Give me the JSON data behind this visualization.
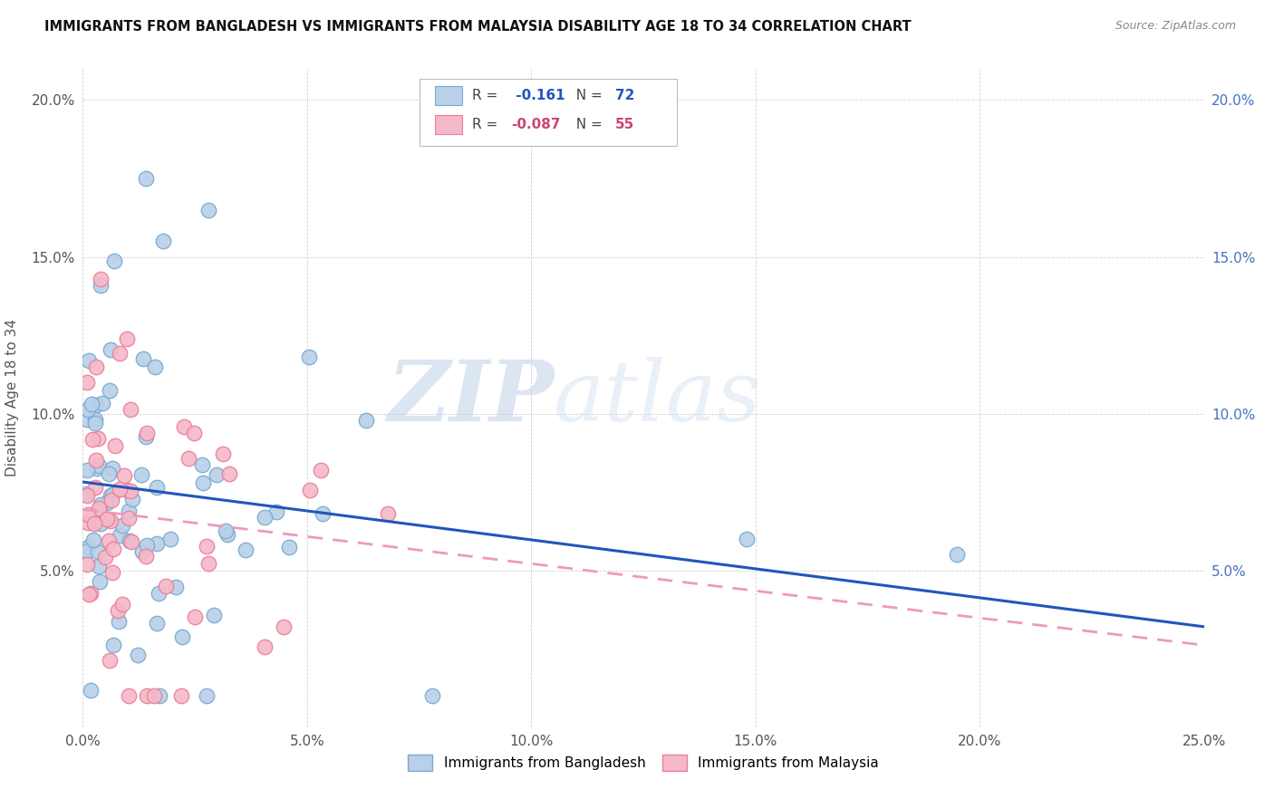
{
  "title": "IMMIGRANTS FROM BANGLADESH VS IMMIGRANTS FROM MALAYSIA DISABILITY AGE 18 TO 34 CORRELATION CHART",
  "source": "Source: ZipAtlas.com",
  "ylabel": "Disability Age 18 to 34",
  "xlim": [
    0.0,
    0.25
  ],
  "ylim": [
    0.0,
    0.21
  ],
  "bangladesh_color": "#b8d0e8",
  "malaysia_color": "#f5b8c8",
  "bangladesh_edge": "#7aaad0",
  "malaysia_edge": "#e8809a",
  "trend_bangladesh_color": "#2255bb",
  "trend_malaysia_color": "#ee99bb",
  "bangladesh_label": "Immigrants from Bangladesh",
  "malaysia_label": "Immigrants from Malaysia",
  "bangladesh_R": -0.161,
  "bangladesh_N": 72,
  "malaysia_R": -0.087,
  "malaysia_N": 55,
  "watermark_zip": "ZIP",
  "watermark_atlas": "atlas",
  "bg_color": "#ffffff"
}
